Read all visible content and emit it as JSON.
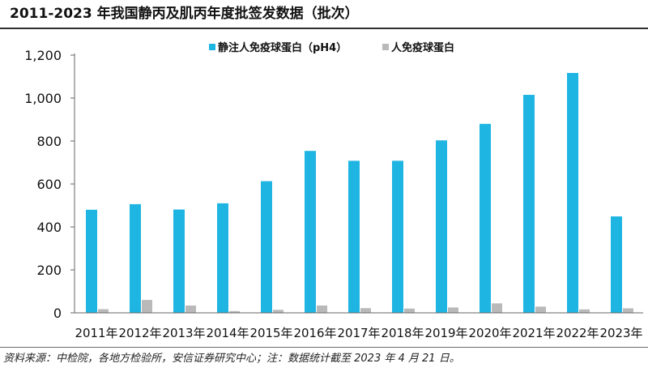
{
  "title": "2011-2023 年我国静丙及肌丙年度批签发数据（批次）",
  "source": "资料来源：中检院，各地方检验所，安信证券研究中心；注：数据统计截至 2023 年 4 月 21 日。",
  "colors": {
    "series1": "#1fb5e3",
    "series2": "#b9b9b9",
    "axis": "#666666"
  },
  "chart_data": {
    "type": "bar",
    "categories": [
      "2011年",
      "2012年",
      "2013年",
      "2014年",
      "2015年",
      "2016年",
      "2017年",
      "2018年",
      "2019年",
      "2020年",
      "2021年",
      "2022年",
      "2023年"
    ],
    "series": [
      {
        "name": "静注人免疫球蛋白（pH4）",
        "values": [
          480,
          506,
          481,
          510,
          613,
          754,
          708,
          708,
          803,
          880,
          1015,
          1117,
          449
        ]
      },
      {
        "name": "人免疫球蛋白",
        "values": [
          17,
          60,
          34,
          8,
          14,
          34,
          22,
          20,
          25,
          44,
          29,
          16,
          21
        ]
      }
    ],
    "ylim": [
      0,
      1200
    ],
    "yticks": [
      0,
      200,
      400,
      600,
      800,
      1000,
      1200
    ],
    "ytick_labels": [
      "0",
      "200",
      "400",
      "600",
      "800",
      "1,000",
      "1,200"
    ],
    "legend_position": "top",
    "grid": false,
    "xlabel": "",
    "ylabel": ""
  }
}
